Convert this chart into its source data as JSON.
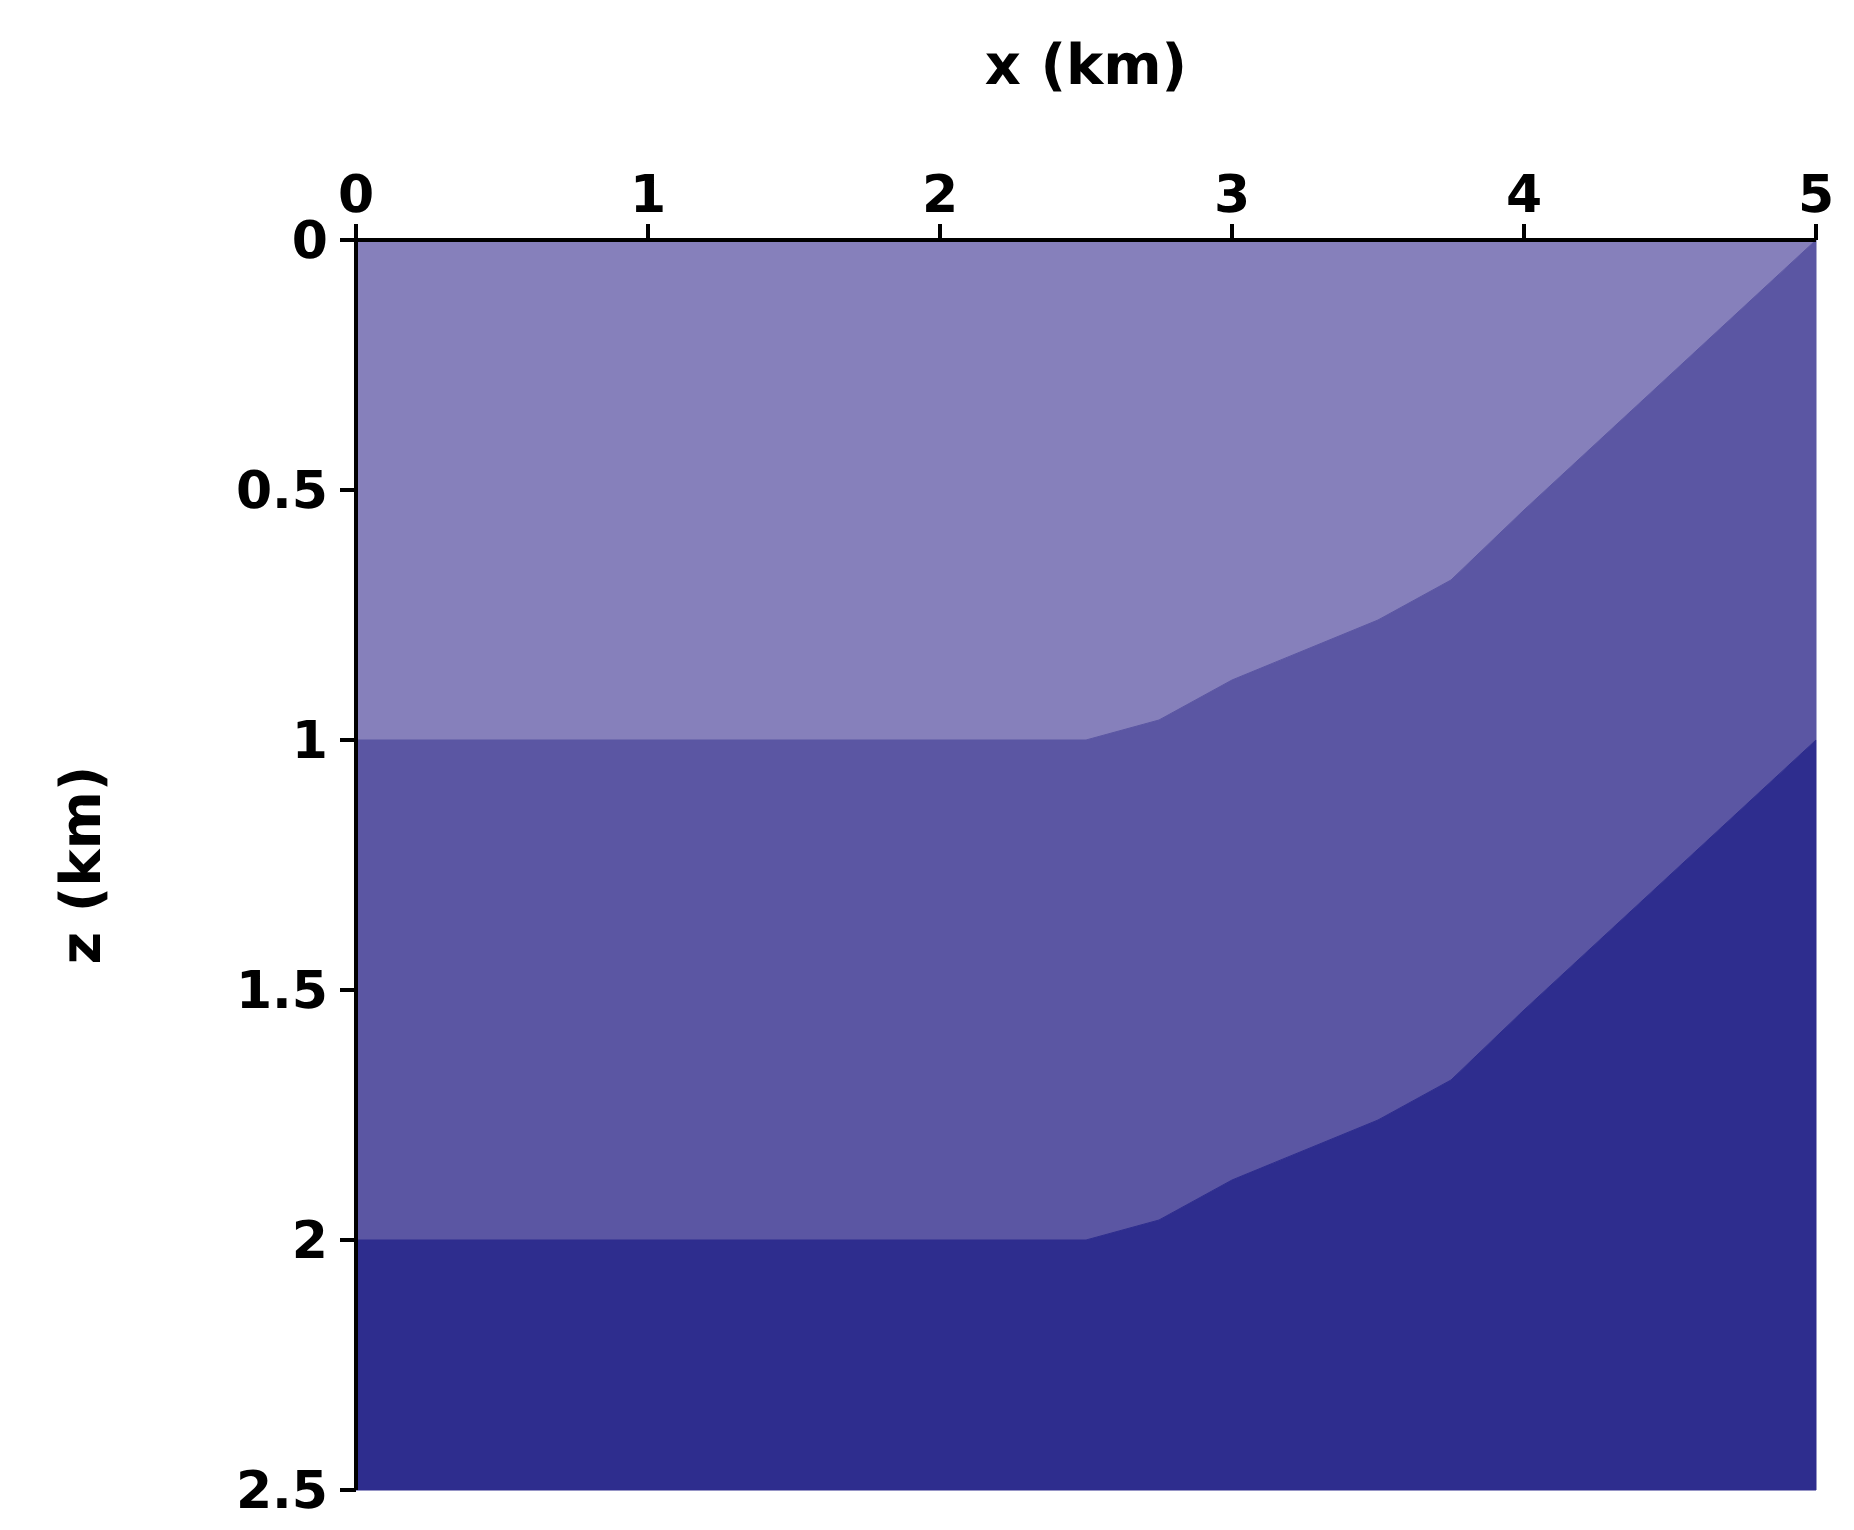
{
  "chart_data": {
    "type": "area",
    "stacked": true,
    "xlabel": "x (km)",
    "ylabel": "z (km)",
    "x": [
      0,
      2.5,
      2.75,
      3,
      3.25,
      3.5,
      3.75,
      4,
      4.5,
      5
    ],
    "series": [
      {
        "color": "#8680bb",
        "values": [
          1,
          1,
          0.96,
          0.88,
          0.82,
          0.76,
          0.68,
          0.54,
          0.27,
          0
        ]
      },
      {
        "color": "#5b56a3",
        "values": [
          1,
          1,
          1,
          1,
          1,
          1,
          1,
          1,
          1,
          1
        ]
      },
      {
        "color": "#2e2d8e",
        "values": [
          0.5,
          0.5,
          0.54,
          0.62,
          0.68,
          0.74,
          0.82,
          0.96,
          1.23,
          1.5
        ]
      }
    ],
    "xlim": [
      0,
      5
    ],
    "xticks": [
      0,
      1,
      2,
      3,
      4,
      5
    ],
    "ylim": [
      2.5,
      0
    ],
    "yticks": [
      0,
      0.5,
      1,
      1.5,
      2,
      2.5
    ]
  }
}
